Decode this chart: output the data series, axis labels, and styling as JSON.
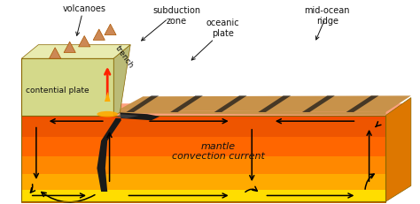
{
  "fig_width": 4.74,
  "fig_height": 2.32,
  "dpi": 100,
  "colors": {
    "white": "#ffffff",
    "mantle_orange": "#ff8800",
    "mantle_red": "#dd4400",
    "mantle_yellow": "#ffcc00",
    "mantle_top_red": "#ee5500",
    "continental_fill": "#d4d98a",
    "continental_top": "#e8ebb0",
    "oceanic_brown": "#c8924a",
    "oceanic_stripe_dark": "#1a1a1a",
    "slab_dark": "#1a1a1a",
    "slab_shine": "#555555",
    "lava_red": "#ff2200",
    "lava_yellow": "#ffaa00",
    "side_face": "#dd7700",
    "front_face": "#cc6600",
    "arrow_color": "#111111",
    "label_color": "#111111",
    "box_edge": "#886600"
  },
  "labels": {
    "volcanoes": "volcanoes",
    "subduction_zone": "subduction\nzone",
    "mid_ocean_ridge": "mid-ocean\nridge",
    "oceanic_plate": "oceanic\nplate",
    "trench": "trench",
    "continental_plate": "contential plate",
    "mantle": "mantle\nconvection current"
  }
}
